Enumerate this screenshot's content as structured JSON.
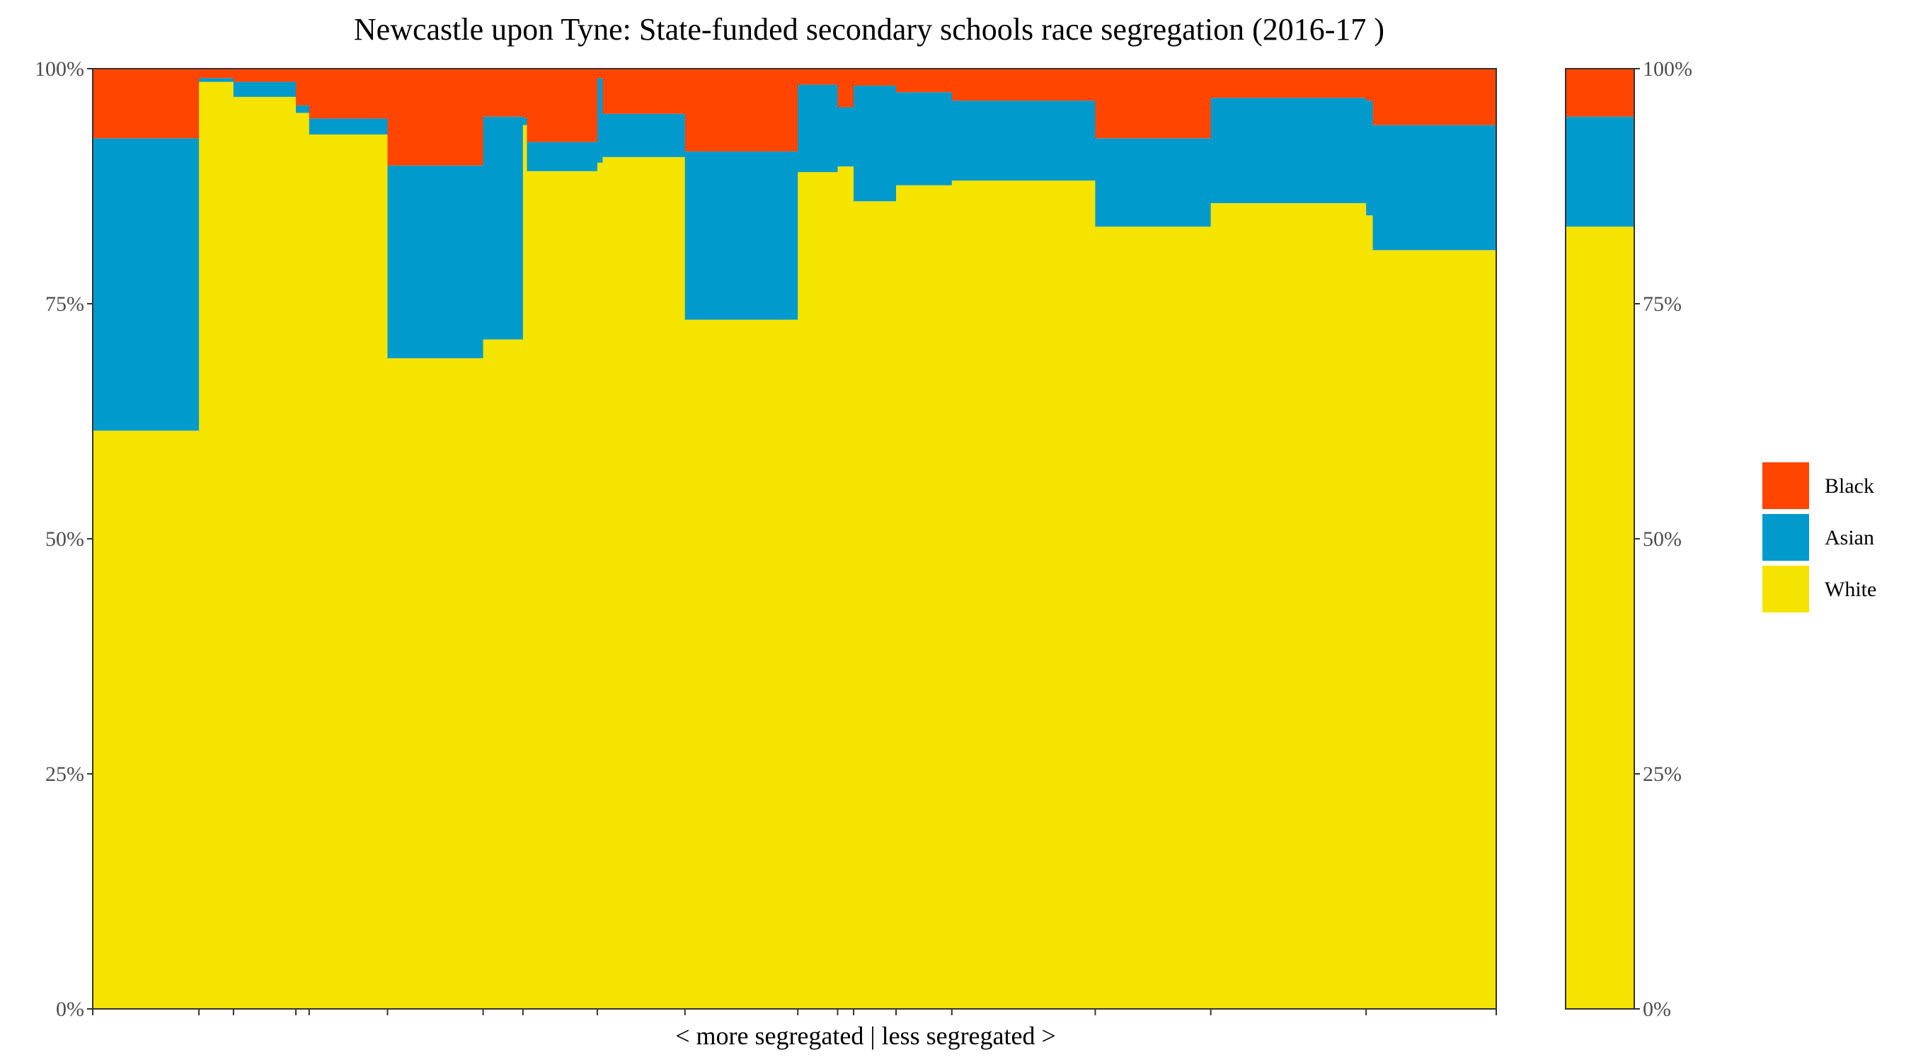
{
  "chart_data": {
    "type": "bar",
    "subtype": "stacked-percent-variable-width",
    "title": "Newcastle upon Tyne: State-funded secondary schools race segregation (2016-17 )",
    "xlabel": "< more segregated | less segregated >",
    "ylabel": "",
    "ylim": [
      0,
      100
    ],
    "y_ticks": [
      "0%",
      "25%",
      "50%",
      "75%",
      "100%"
    ],
    "y_axis_right": true,
    "grid": false,
    "legend": {
      "position": "right",
      "entries": [
        "Black",
        "Asian",
        "White"
      ]
    },
    "colors": {
      "Black": "#FF4500",
      "Asian": "#009ACD",
      "White": "#F5E400"
    },
    "series_order": [
      "White",
      "Asian",
      "Black"
    ],
    "schools": [
      {
        "width": 8.0,
        "white": 61.5,
        "asian": 31.1,
        "black": 7.4
      },
      {
        "width": 2.6,
        "white": 98.6,
        "asian": 0.4,
        "black": 1.0
      },
      {
        "width": 4.7,
        "white": 97.0,
        "asian": 1.6,
        "black": 1.4
      },
      {
        "width": 1.0,
        "white": 95.3,
        "asian": 0.8,
        "black": 3.9
      },
      {
        "width": 5.9,
        "white": 93.0,
        "asian": 1.7,
        "black": 5.3
      },
      {
        "width": 7.2,
        "white": 69.2,
        "asian": 20.5,
        "black": 10.3
      },
      {
        "width": 3.0,
        "white": 71.2,
        "asian": 23.7,
        "black": 5.1
      },
      {
        "width": 0.3,
        "white": 94.0,
        "asian": 0.8,
        "black": 5.2
      },
      {
        "width": 5.3,
        "white": 89.1,
        "asian": 3.1,
        "black": 7.8
      },
      {
        "width": 0.4,
        "white": 90.0,
        "asian": 9.0,
        "black": 1.0
      },
      {
        "width": 6.2,
        "white": 90.6,
        "asian": 4.6,
        "black": 4.8
      },
      {
        "width": 8.5,
        "white": 73.3,
        "asian": 17.9,
        "black": 8.8
      },
      {
        "width": 3.0,
        "white": 89.0,
        "asian": 9.3,
        "black": 1.7
      },
      {
        "width": 1.2,
        "white": 89.6,
        "asian": 6.3,
        "black": 4.1
      },
      {
        "width": 3.2,
        "white": 85.9,
        "asian": 12.3,
        "black": 1.8
      },
      {
        "width": 4.2,
        "white": 87.6,
        "asian": 9.9,
        "black": 2.5
      },
      {
        "width": 10.8,
        "white": 88.1,
        "asian": 8.5,
        "black": 3.4
      },
      {
        "width": 8.7,
        "white": 83.2,
        "asian": 9.4,
        "black": 7.4
      },
      {
        "width": 11.7,
        "white": 85.7,
        "asian": 11.2,
        "black": 3.1
      },
      {
        "width": 0.5,
        "white": 84.4,
        "asian": 12.2,
        "black": 3.4
      },
      {
        "width": 9.3,
        "white": 80.7,
        "asian": 13.3,
        "black": 6.0
      }
    ],
    "overall": {
      "label": "",
      "white": 83.2,
      "asian": 11.7,
      "black": 5.1
    }
  }
}
